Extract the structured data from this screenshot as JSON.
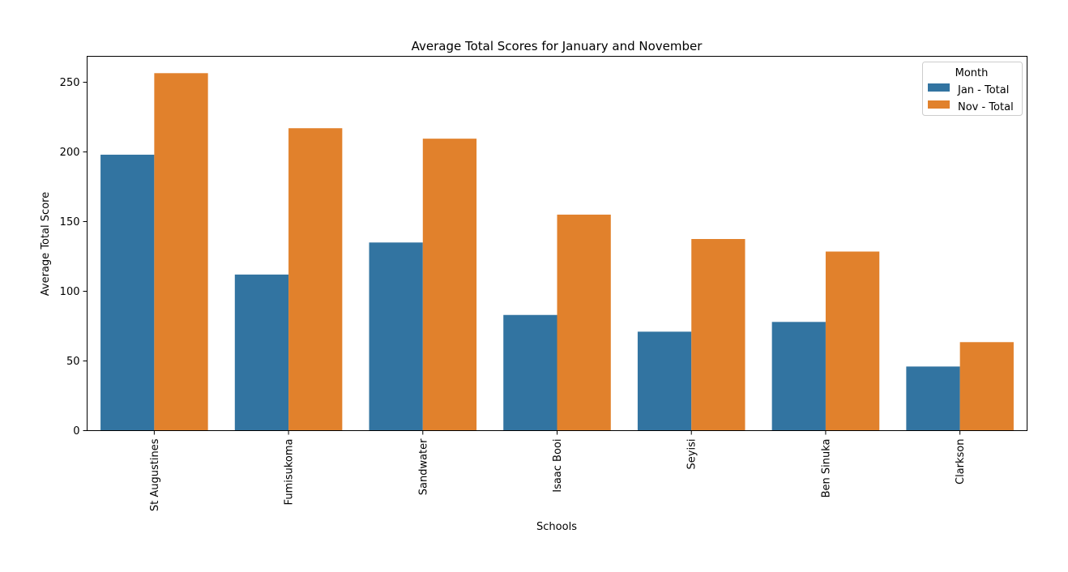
{
  "chart_data": {
    "type": "bar",
    "title": "Average Total Scores for January and November",
    "xlabel": "Schools",
    "ylabel": "Average Total Score",
    "categories": [
      "St Augustines",
      "Fumisukoma",
      "Sandwater",
      "Isaac Booi",
      "Seyisi",
      "Ben Sinuka",
      "Clarkson"
    ],
    "series": [
      {
        "name": "Jan - Total",
        "color": "#3274a1",
        "values": [
          198,
          112,
          135,
          83,
          71,
          78,
          46
        ]
      },
      {
        "name": "Nov - Total",
        "color": "#e1812c",
        "values": [
          256.5,
          217,
          209.5,
          155,
          137.5,
          128.5,
          63.5
        ]
      }
    ],
    "ylim": [
      0,
      268.6
    ],
    "yticks": [
      0,
      50,
      100,
      150,
      200,
      250
    ],
    "grid": false,
    "legend": {
      "title": "Month",
      "position": "top-right"
    }
  }
}
